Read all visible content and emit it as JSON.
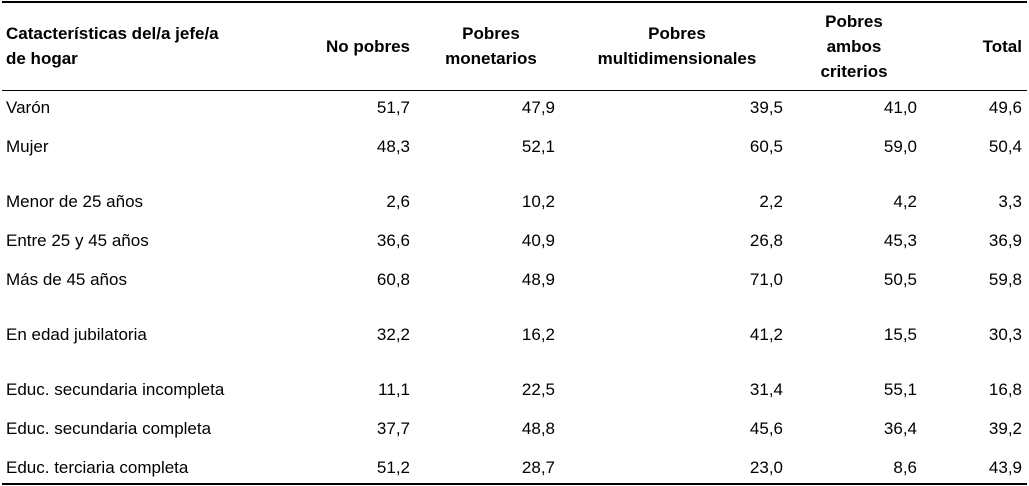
{
  "table": {
    "header": [
      [
        "Catacterísticas del/a jefe/a",
        "de hogar"
      ],
      [
        "No pobres"
      ],
      [
        "Pobres",
        "monetarios"
      ],
      [
        "Pobres",
        "multidimensionales"
      ],
      [
        "Pobres",
        "ambos",
        "criterios"
      ],
      [
        "Total"
      ]
    ],
    "groups": [
      [
        [
          "Varón",
          "51,7",
          "47,9",
          "39,5",
          "41,0",
          "49,6"
        ],
        [
          "Mujer",
          "48,3",
          "52,1",
          "60,5",
          "59,0",
          "50,4"
        ]
      ],
      [
        [
          "Menor de 25 años",
          "2,6",
          "10,2",
          "2,2",
          "4,2",
          "3,3"
        ],
        [
          "Entre 25 y 45 años",
          "36,6",
          "40,9",
          "26,8",
          "45,3",
          "36,9"
        ],
        [
          "Más de 45 años",
          "60,8",
          "48,9",
          "71,0",
          "50,5",
          "59,8"
        ]
      ],
      [
        [
          "En edad jubilatoria",
          "32,2",
          "16,2",
          "41,2",
          "15,5",
          "30,3"
        ]
      ],
      [
        [
          "Educ. secundaria incompleta",
          "11,1",
          "22,5",
          "31,4",
          "55,1",
          "16,8"
        ],
        [
          "Educ. secundaria completa",
          "37,7",
          "48,8",
          "45,6",
          "36,4",
          "39,2"
        ],
        [
          "Educ. terciaria completa",
          "51,2",
          "28,7",
          "23,0",
          "8,6",
          "43,9"
        ]
      ]
    ]
  }
}
